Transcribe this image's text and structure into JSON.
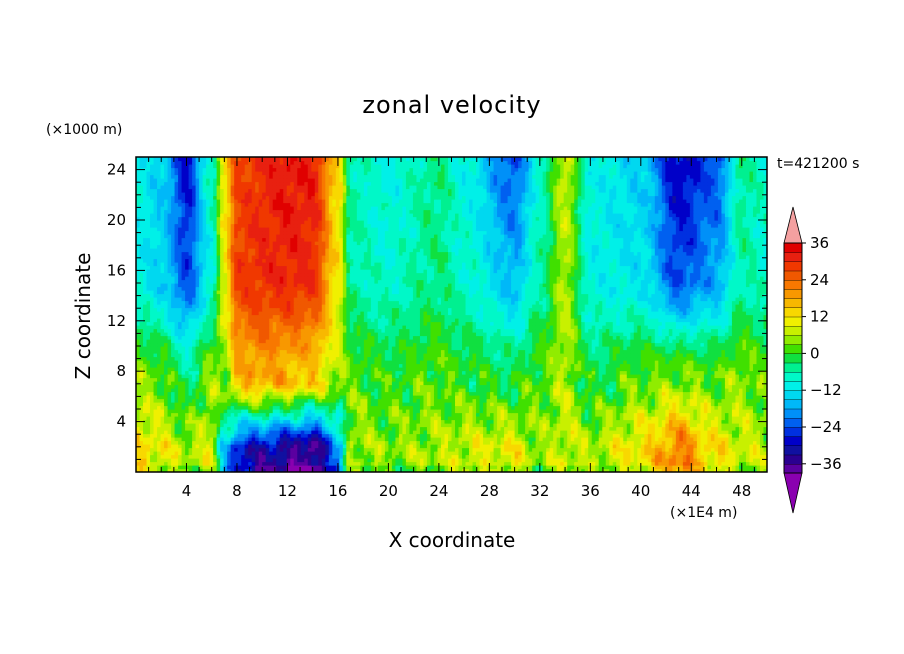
{
  "chart_data": {
    "type": "heatmap",
    "title": "zonal velocity",
    "xlabel": "X coordinate",
    "ylabel": "Z coordinate",
    "x_unit": "(×1E4 m)",
    "y_unit": "(×1000 m)",
    "time_label": "t=421200 s",
    "xlim": [
      0,
      50
    ],
    "ylim": [
      0,
      25
    ],
    "x_ticks": [
      4,
      8,
      12,
      16,
      20,
      24,
      28,
      32,
      36,
      40,
      44,
      48
    ],
    "y_ticks": [
      4,
      8,
      12,
      16,
      20,
      24
    ],
    "x_tick_labels": [
      "4",
      "8",
      "12",
      "16",
      "20",
      "24",
      "28",
      "32",
      "36",
      "40",
      "44",
      "48"
    ],
    "y_tick_labels": [
      "4",
      "8",
      "12",
      "16",
      "20",
      "24"
    ],
    "colorbar": {
      "levels": [
        -42,
        -39,
        -36,
        -33,
        -30,
        -27,
        -24,
        -21,
        -18,
        -15,
        -12,
        -9,
        -6,
        -3,
        0,
        3,
        6,
        9,
        12,
        15,
        18,
        21,
        24,
        27,
        30,
        33,
        36,
        39
      ],
      "colors": [
        "#8a00b0",
        "#5a00a0",
        "#2a0090",
        "#1010a0",
        "#0000c8",
        "#0030e0",
        "#0060f0",
        "#0090f8",
        "#00b8f8",
        "#00d8f0",
        "#00f0e8",
        "#00f8c8",
        "#00f090",
        "#10e040",
        "#40e000",
        "#90ec00",
        "#c8f000",
        "#f0f000",
        "#f8d800",
        "#f8b800",
        "#f89800",
        "#f87800",
        "#f05800",
        "#f03800",
        "#e82010",
        "#e00000",
        "#f4a0a0"
      ],
      "tick_values": [
        -36,
        -24,
        -12,
        0,
        12,
        24,
        36
      ],
      "tick_labels": [
        "−36",
        "−24",
        "−12",
        "0",
        "12",
        "24",
        "36"
      ]
    },
    "field_columns": [
      {
        "x": 0.0,
        "top": -10,
        "mid": -10,
        "low": 4,
        "sfc": 14
      },
      {
        "x": 2.0,
        "top": -14,
        "mid": -14,
        "low": 2,
        "sfc": 10
      },
      {
        "x": 4.0,
        "top": -28,
        "mid": -24,
        "low": -4,
        "sfc": 6
      },
      {
        "x": 6.0,
        "top": -6,
        "mid": -10,
        "low": 4,
        "sfc": 8
      },
      {
        "x": 7.0,
        "top": 12,
        "mid": 10,
        "low": 4,
        "sfc": -14
      },
      {
        "x": 8.0,
        "top": 27,
        "mid": 28,
        "low": 16,
        "sfc": -28
      },
      {
        "x": 10.0,
        "top": 30,
        "mid": 30,
        "low": 18,
        "sfc": -32
      },
      {
        "x": 12.0,
        "top": 33,
        "mid": 31,
        "low": 16,
        "sfc": -34
      },
      {
        "x": 14.0,
        "top": 32,
        "mid": 30,
        "low": 14,
        "sfc": -38
      },
      {
        "x": 16.0,
        "top": 14,
        "mid": 12,
        "low": 6,
        "sfc": -20
      },
      {
        "x": 17.0,
        "top": -6,
        "mid": -6,
        "low": 2,
        "sfc": 6
      },
      {
        "x": 20.0,
        "top": -10,
        "mid": -8,
        "low": 0,
        "sfc": 4
      },
      {
        "x": 24.0,
        "top": -4,
        "mid": -4,
        "low": 2,
        "sfc": 6
      },
      {
        "x": 26.0,
        "top": -10,
        "mid": -8,
        "low": 0,
        "sfc": 8
      },
      {
        "x": 30.0,
        "top": -24,
        "mid": -16,
        "low": -2,
        "sfc": 10
      },
      {
        "x": 32.0,
        "top": -8,
        "mid": -6,
        "low": 2,
        "sfc": 4
      },
      {
        "x": 34.0,
        "top": 8,
        "mid": 6,
        "low": 6,
        "sfc": 8
      },
      {
        "x": 36.0,
        "top": -10,
        "mid": -10,
        "low": -2,
        "sfc": 6
      },
      {
        "x": 40.0,
        "top": -14,
        "mid": -12,
        "low": 2,
        "sfc": 12
      },
      {
        "x": 43.0,
        "top": -30,
        "mid": -24,
        "low": 4,
        "sfc": 22
      },
      {
        "x": 46.0,
        "top": -24,
        "mid": -18,
        "low": 2,
        "sfc": 12
      },
      {
        "x": 48.0,
        "top": -4,
        "mid": -6,
        "low": 4,
        "sfc": 8
      },
      {
        "x": 50.0,
        "top": -8,
        "mid": -8,
        "low": 2,
        "sfc": 6
      }
    ]
  }
}
